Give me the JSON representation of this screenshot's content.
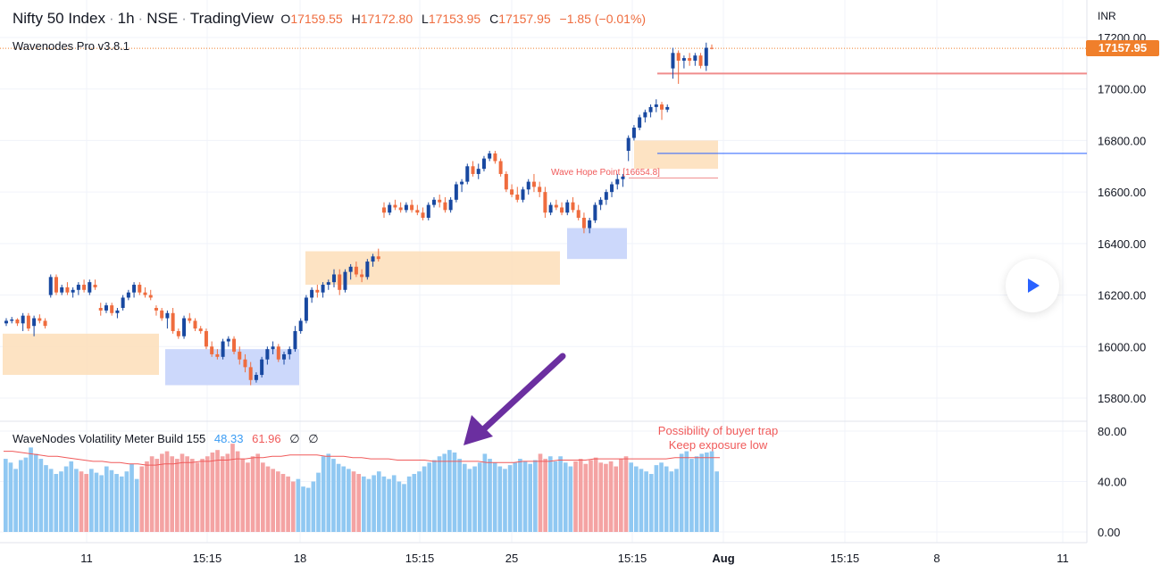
{
  "header": {
    "symbol": "Nifty 50 Index",
    "interval": "1h",
    "exchange": "NSE",
    "source": "TradingView",
    "ohlc": {
      "o_label": "O",
      "o": "17159.55",
      "h_label": "H",
      "h": "17172.80",
      "l_label": "L",
      "l": "17153.95",
      "c_label": "C",
      "c": "17157.95",
      "change": "−1.85 (−0.01%)"
    }
  },
  "indicator_title": "Wavenodes Pro v3.8.1",
  "currency": "INR",
  "last_price_badge": "17157.95",
  "wave_hope_label": "Wave Hope Point [16654.8]",
  "volatility": {
    "title": "WaveNodes Volatility Meter Build 155",
    "val1": "48.33",
    "val2": "61.96",
    "val3": "∅",
    "val4": "∅",
    "note_line1": "Possibility of buyer trap",
    "note_line2": "Keep exposure low"
  },
  "colors": {
    "bull": "#1848a0",
    "bear": "#ef6c3e",
    "vol_blue": "#90c8f2",
    "vol_red": "#f4a3a3",
    "supply_zone": "#fde0bd",
    "demand_zone": "#c7d4fb",
    "arrow": "#6b2fa0"
  },
  "icons": {
    "play": "play-icon",
    "arrow": "arrow-annotation-icon"
  },
  "chart_data": [
    {
      "type": "candlestick",
      "title": "Nifty 50 Index · 1h · NSE",
      "y_axis_ticks": [
        "17200.00",
        "17000.00",
        "16800.00",
        "16600.00",
        "16400.00",
        "16200.00",
        "16000.00",
        "15800.00"
      ],
      "x_axis_ticks": [
        "11",
        "15:15",
        "18",
        "15:15",
        "25",
        "15:15",
        "Aug",
        "15:15",
        "8",
        "11"
      ],
      "ylim": [
        15730,
        17250
      ],
      "last_close": 17157.95,
      "candles": [
        [
          16090,
          16110,
          16080,
          16100
        ],
        [
          16100,
          16115,
          16090,
          16105
        ],
        [
          16105,
          16110,
          16080,
          16090
        ],
        [
          16090,
          16130,
          16060,
          16120
        ],
        [
          16120,
          16130,
          16060,
          16070
        ],
        [
          16080,
          16120,
          16040,
          16110
        ],
        [
          16110,
          16125,
          16090,
          16100
        ],
        [
          16100,
          16110,
          16070,
          16080
        ],
        [
          16200,
          16280,
          16190,
          16270
        ],
        [
          16270,
          16280,
          16200,
          16210
        ],
        [
          16210,
          16240,
          16200,
          16230
        ],
        [
          16230,
          16250,
          16200,
          16210
        ],
        [
          16210,
          16230,
          16190,
          16220
        ],
        [
          16220,
          16250,
          16200,
          16240
        ],
        [
          16240,
          16260,
          16210,
          16220
        ],
        [
          16210,
          16260,
          16200,
          16250
        ],
        [
          16240,
          16260,
          16220,
          16230
        ],
        [
          16150,
          16170,
          16120,
          16140
        ],
        [
          16140,
          16170,
          16130,
          16160
        ],
        [
          16160,
          16170,
          16120,
          16130
        ],
        [
          16130,
          16150,
          16110,
          16140
        ],
        [
          16150,
          16200,
          16140,
          16190
        ],
        [
          16190,
          16220,
          16180,
          16210
        ],
        [
          16210,
          16250,
          16190,
          16240
        ],
        [
          16240,
          16250,
          16200,
          16210
        ],
        [
          16210,
          16230,
          16190,
          16200
        ],
        [
          16200,
          16220,
          16180,
          16190
        ],
        [
          16150,
          16160,
          16120,
          16140
        ],
        [
          16140,
          16150,
          16100,
          16110
        ],
        [
          16110,
          16140,
          16070,
          16130
        ],
        [
          16130,
          16150,
          16050,
          16060
        ],
        [
          16060,
          16070,
          16030,
          16040
        ],
        [
          16040,
          16120,
          16030,
          16110
        ],
        [
          16110,
          16130,
          16090,
          16100
        ],
        [
          16100,
          16110,
          16060,
          16070
        ],
        [
          16070,
          16080,
          16050,
          16060
        ],
        [
          16060,
          16070,
          15990,
          16000
        ],
        [
          16000,
          16020,
          15960,
          15970
        ],
        [
          15970,
          15990,
          15950,
          15960
        ],
        [
          15960,
          16030,
          15950,
          16020
        ],
        [
          16020,
          16040,
          16000,
          16030
        ],
        [
          16030,
          16040,
          15970,
          15980
        ],
        [
          15980,
          16000,
          15930,
          15950
        ],
        [
          15950,
          15970,
          15900,
          15920
        ],
        [
          15920,
          15940,
          15850,
          15870
        ],
        [
          15870,
          15900,
          15860,
          15890
        ],
        [
          15890,
          15960,
          15880,
          15950
        ],
        [
          15950,
          16000,
          15930,
          15990
        ],
        [
          15990,
          16020,
          15970,
          16000
        ],
        [
          16000,
          16010,
          15940,
          15950
        ],
        [
          15950,
          15980,
          15930,
          15970
        ],
        [
          15970,
          16000,
          15950,
          15990
        ],
        [
          15990,
          16080,
          15980,
          16060
        ],
        [
          16060,
          16110,
          16050,
          16100
        ],
        [
          16100,
          16200,
          16090,
          16190
        ],
        [
          16190,
          16230,
          16170,
          16220
        ],
        [
          16220,
          16240,
          16190,
          16210
        ],
        [
          16210,
          16250,
          16190,
          16240
        ],
        [
          16240,
          16260,
          16220,
          16250
        ],
        [
          16250,
          16300,
          16230,
          16280
        ],
        [
          16280,
          16300,
          16200,
          16220
        ],
        [
          16220,
          16300,
          16210,
          16290
        ],
        [
          16290,
          16320,
          16260,
          16310
        ],
        [
          16310,
          16330,
          16270,
          16280
        ],
        [
          16280,
          16300,
          16250,
          16270
        ],
        [
          16270,
          16340,
          16260,
          16330
        ],
        [
          16330,
          16360,
          16310,
          16350
        ],
        [
          16350,
          16380,
          16330,
          16340
        ],
        [
          16540,
          16560,
          16500,
          16520
        ],
        [
          16520,
          16560,
          16510,
          16550
        ],
        [
          16550,
          16570,
          16530,
          16540
        ],
        [
          16540,
          16560,
          16520,
          16530
        ],
        [
          16530,
          16560,
          16520,
          16550
        ],
        [
          16550,
          16570,
          16520,
          16530
        ],
        [
          16530,
          16550,
          16510,
          16520
        ],
        [
          16520,
          16540,
          16490,
          16500
        ],
        [
          16500,
          16560,
          16490,
          16550
        ],
        [
          16550,
          16580,
          16540,
          16570
        ],
        [
          16570,
          16590,
          16540,
          16560
        ],
        [
          16560,
          16580,
          16520,
          16530
        ],
        [
          16530,
          16580,
          16520,
          16570
        ],
        [
          16570,
          16640,
          16560,
          16630
        ],
        [
          16630,
          16650,
          16600,
          16640
        ],
        [
          16640,
          16710,
          16630,
          16700
        ],
        [
          16700,
          16720,
          16660,
          16670
        ],
        [
          16670,
          16710,
          16650,
          16690
        ],
        [
          16690,
          16740,
          16680,
          16730
        ],
        [
          16730,
          16760,
          16720,
          16750
        ],
        [
          16750,
          16760,
          16710,
          16720
        ],
        [
          16720,
          16730,
          16660,
          16670
        ],
        [
          16670,
          16680,
          16600,
          16610
        ],
        [
          16610,
          16630,
          16580,
          16590
        ],
        [
          16590,
          16620,
          16560,
          16570
        ],
        [
          16570,
          16620,
          16560,
          16610
        ],
        [
          16610,
          16650,
          16590,
          16640
        ],
        [
          16640,
          16670,
          16600,
          16620
        ],
        [
          16620,
          16640,
          16580,
          16600
        ],
        [
          16600,
          16620,
          16500,
          16520
        ],
        [
          16520,
          16560,
          16510,
          16550
        ],
        [
          16550,
          16570,
          16530,
          16540
        ],
        [
          16540,
          16560,
          16510,
          16520
        ],
        [
          16520,
          16570,
          16510,
          16560
        ],
        [
          16560,
          16580,
          16520,
          16530
        ],
        [
          16530,
          16550,
          16490,
          16500
        ],
        [
          16500,
          16520,
          16440,
          16460
        ],
        [
          16460,
          16500,
          16440,
          16490
        ],
        [
          16490,
          16560,
          16480,
          16550
        ],
        [
          16550,
          16580,
          16530,
          16570
        ],
        [
          16570,
          16610,
          16550,
          16600
        ],
        [
          16600,
          16640,
          16580,
          16630
        ],
        [
          16630,
          16670,
          16610,
          16650
        ],
        [
          16650,
          16670,
          16620,
          16660
        ],
        [
          16760,
          16820,
          16720,
          16810
        ],
        [
          16810,
          16860,
          16800,
          16850
        ],
        [
          16850,
          16900,
          16840,
          16890
        ],
        [
          16890,
          16920,
          16870,
          16910
        ],
        [
          16910,
          16940,
          16890,
          16930
        ],
        [
          16930,
          16960,
          16910,
          16940
        ],
        [
          16940,
          16950,
          16880,
          16920
        ],
        [
          16920,
          16940,
          16910,
          16930
        ],
        [
          17080,
          17160,
          17040,
          17140
        ],
        [
          17140,
          17150,
          17020,
          17110
        ],
        [
          17110,
          17130,
          17080,
          17120
        ],
        [
          17120,
          17140,
          17090,
          17110
        ],
        [
          17110,
          17140,
          17090,
          17130
        ],
        [
          17130,
          17140,
          17080,
          17090
        ],
        [
          17090,
          17180,
          17070,
          17160
        ],
        [
          17159.55,
          17172.8,
          17153.95,
          17157.95
        ]
      ],
      "zones": [
        {
          "kind": "supply",
          "y_top": 16050,
          "y_bottom": 15890
        },
        {
          "kind": "demand",
          "y_top": 15990,
          "y_bottom": 15850
        },
        {
          "kind": "supply",
          "y_top": 16370,
          "y_bottom": 16240
        },
        {
          "kind": "demand",
          "y_top": 16460,
          "y_bottom": 16340
        },
        {
          "kind": "supply",
          "y_top": 16800,
          "y_bottom": 16690
        }
      ],
      "levels": [
        {
          "kind": "red",
          "y": 17060
        },
        {
          "kind": "blue",
          "y": 16750
        },
        {
          "kind": "red",
          "y": 16654.8
        }
      ]
    },
    {
      "type": "bar",
      "title": "WaveNodes Volatility Meter Build 155",
      "y_axis_ticks": [
        "80.00",
        "40.00",
        "0.00"
      ],
      "ylim": [
        0,
        80
      ],
      "colors": [
        "b",
        "b",
        "b",
        "b",
        "b",
        "b",
        "b",
        "b",
        "b",
        "b",
        "b",
        "b",
        "b",
        "b",
        "b",
        "r",
        "r",
        "b",
        "b",
        "b",
        "b",
        "b",
        "b",
        "b",
        "b",
        "b",
        "b",
        "r",
        "r",
        "r",
        "r",
        "r",
        "r",
        "r",
        "r",
        "r",
        "r",
        "r",
        "r",
        "r",
        "r",
        "r",
        "r",
        "r",
        "r",
        "r",
        "r",
        "r",
        "r",
        "r",
        "r",
        "r",
        "r",
        "r",
        "r",
        "r",
        "r",
        "r",
        "b",
        "b",
        "b",
        "b",
        "b",
        "b",
        "b",
        "b",
        "b",
        "b",
        "b",
        "r",
        "r",
        "b",
        "b",
        "b",
        "b",
        "b",
        "b",
        "b",
        "b",
        "b",
        "b",
        "b",
        "b",
        "b",
        "b",
        "b",
        "b",
        "b",
        "b",
        "b",
        "b",
        "b",
        "b",
        "b",
        "b",
        "b",
        "b",
        "b",
        "b",
        "b",
        "b",
        "b",
        "b",
        "b",
        "b",
        "b",
        "r",
        "r",
        "b",
        "b",
        "b",
        "b",
        "b",
        "r",
        "r",
        "r",
        "r",
        "r",
        "r",
        "r",
        "r",
        "r",
        "r",
        "r",
        "b",
        "b",
        "b",
        "b",
        "b",
        "b",
        "b",
        "b",
        "b",
        "b",
        "b",
        "b",
        "b",
        "b",
        "b",
        "b"
      ],
      "values": [
        58,
        55,
        50,
        57,
        59,
        67,
        62,
        58,
        53,
        50,
        46,
        48,
        52,
        56,
        50,
        48,
        46,
        50,
        47,
        45,
        52,
        49,
        46,
        44,
        48,
        54,
        42,
        52,
        56,
        60,
        58,
        62,
        64,
        60,
        58,
        62,
        60,
        58,
        55,
        58,
        60,
        63,
        65,
        60,
        62,
        70,
        64,
        58,
        55,
        60,
        62,
        55,
        52,
        50,
        48,
        46,
        44,
        40,
        42,
        36,
        35,
        40,
        47,
        60,
        62,
        58,
        54,
        52,
        50,
        48,
        46,
        44,
        42,
        45,
        48,
        44,
        42,
        45,
        40,
        38,
        44,
        46,
        48,
        52,
        55,
        57,
        60,
        62,
        65,
        63,
        58,
        54,
        50,
        52,
        55,
        62,
        58,
        55,
        52,
        50,
        53,
        55,
        58,
        56,
        54,
        57,
        62,
        58,
        60,
        56,
        60,
        55,
        52,
        56,
        58,
        54,
        57,
        59,
        55,
        54,
        56,
        52,
        58,
        60,
        55,
        52,
        50,
        48,
        46,
        53,
        55,
        52,
        48,
        50,
        62,
        64,
        58,
        60,
        62,
        63,
        64,
        48
      ],
      "baseline": [
        64,
        64,
        63,
        62,
        61,
        60,
        60,
        59,
        58,
        57,
        56,
        56,
        55,
        55,
        54,
        54,
        53,
        53,
        54,
        54,
        55,
        55,
        56,
        56,
        57,
        57,
        58,
        58,
        59,
        59,
        60,
        60,
        61,
        61,
        61,
        61,
        60,
        60,
        60,
        59,
        59,
        58,
        58,
        58,
        57,
        57,
        57,
        57,
        56,
        56,
        56,
        56,
        56,
        56,
        55,
        55,
        55,
        55,
        56,
        56,
        56,
        56,
        57,
        57,
        57,
        57,
        58,
        58,
        58,
        58,
        58,
        58,
        58,
        58,
        58,
        59,
        59,
        59,
        59,
        59,
        59
      ]
    }
  ]
}
